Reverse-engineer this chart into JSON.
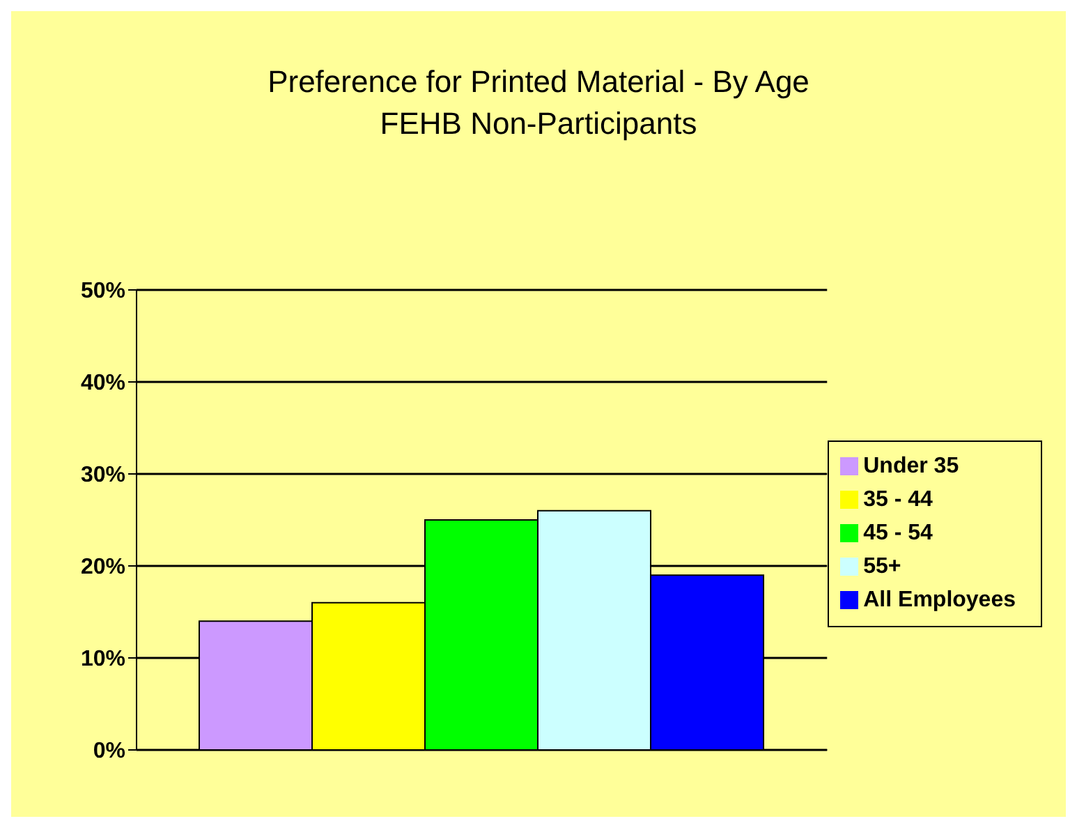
{
  "chart_data": {
    "type": "bar",
    "title": "Preference for Printed Material - By Age",
    "subtitle": "FEHB Non-Participants",
    "categories": [
      null
    ],
    "series": [
      {
        "name": "Under 35",
        "color": "#cc99ff",
        "values": [
          14
        ]
      },
      {
        "name": "35 - 44",
        "color": "#ffff00",
        "values": [
          16
        ]
      },
      {
        "name": "45 - 54",
        "color": "#00ff00",
        "values": [
          25
        ]
      },
      {
        "name": "55+",
        "color": "#ccffff",
        "values": [
          26
        ]
      },
      {
        "name": "All Employees",
        "color": "#0000ff",
        "values": [
          19
        ]
      }
    ],
    "ylim": [
      0,
      50
    ],
    "yticks": [
      {
        "value": 0,
        "label": "0%"
      },
      {
        "value": 10,
        "label": "10%"
      },
      {
        "value": 20,
        "label": "20%"
      },
      {
        "value": 30,
        "label": "30%"
      },
      {
        "value": 40,
        "label": "40%"
      },
      {
        "value": 50,
        "label": "50%"
      }
    ],
    "grid": "y",
    "legend": "right",
    "tick_labels": "y"
  }
}
